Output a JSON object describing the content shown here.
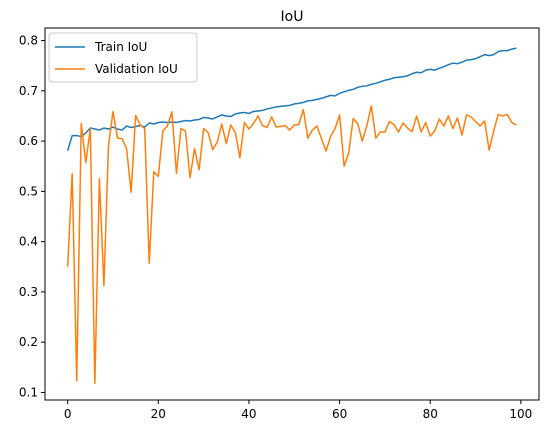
{
  "chart_data": {
    "type": "line",
    "title": "IoU",
    "xlabel": "",
    "ylabel": "",
    "xlim": [
      -5,
      104
    ],
    "ylim": [
      0.085,
      0.825
    ],
    "xticks": [
      0,
      20,
      40,
      60,
      80,
      100
    ],
    "yticks": [
      0.1,
      0.2,
      0.3,
      0.4,
      0.5,
      0.6,
      0.7,
      0.8
    ],
    "legend": "upper left",
    "grid": false,
    "series": [
      {
        "name": "Train IoU",
        "color": "#1f77b4",
        "x": [
          0,
          1,
          2,
          3,
          4,
          5,
          6,
          7,
          8,
          9,
          10,
          11,
          12,
          13,
          14,
          15,
          16,
          17,
          18,
          19,
          20,
          21,
          22,
          23,
          24,
          25,
          26,
          27,
          28,
          29,
          30,
          31,
          32,
          33,
          34,
          35,
          36,
          37,
          38,
          39,
          40,
          41,
          42,
          43,
          44,
          45,
          46,
          47,
          48,
          49,
          50,
          51,
          52,
          53,
          54,
          55,
          56,
          57,
          58,
          59,
          60,
          61,
          62,
          63,
          64,
          65,
          66,
          67,
          68,
          69,
          70,
          71,
          72,
          73,
          74,
          75,
          76,
          77,
          78,
          79,
          80,
          81,
          82,
          83,
          84,
          85,
          86,
          87,
          88,
          89,
          90,
          91,
          92,
          93,
          94,
          95,
          96,
          97,
          98,
          99
        ],
        "values": [
          0.581,
          0.611,
          0.611,
          0.609,
          0.616,
          0.626,
          0.624,
          0.622,
          0.626,
          0.624,
          0.628,
          0.624,
          0.622,
          0.63,
          0.627,
          0.629,
          0.631,
          0.628,
          0.636,
          0.634,
          0.637,
          0.638,
          0.637,
          0.638,
          0.637,
          0.639,
          0.641,
          0.64,
          0.642,
          0.643,
          0.647,
          0.646,
          0.644,
          0.648,
          0.652,
          0.65,
          0.649,
          0.654,
          0.656,
          0.657,
          0.655,
          0.659,
          0.66,
          0.661,
          0.664,
          0.666,
          0.668,
          0.669,
          0.67,
          0.671,
          0.674,
          0.675,
          0.677,
          0.68,
          0.681,
          0.683,
          0.685,
          0.688,
          0.691,
          0.69,
          0.695,
          0.698,
          0.701,
          0.703,
          0.707,
          0.709,
          0.71,
          0.713,
          0.715,
          0.718,
          0.721,
          0.723,
          0.726,
          0.727,
          0.728,
          0.73,
          0.734,
          0.737,
          0.736,
          0.741,
          0.743,
          0.741,
          0.745,
          0.748,
          0.752,
          0.755,
          0.754,
          0.757,
          0.761,
          0.762,
          0.764,
          0.768,
          0.772,
          0.77,
          0.772,
          0.778,
          0.78,
          0.78,
          0.783,
          0.785
        ]
      },
      {
        "name": "Validation IoU",
        "color": "#ff7f0e",
        "x": [
          0,
          1,
          2,
          3,
          4,
          5,
          6,
          7,
          8,
          9,
          10,
          11,
          12,
          13,
          14,
          15,
          16,
          17,
          18,
          19,
          20,
          21,
          22,
          23,
          24,
          25,
          26,
          27,
          28,
          29,
          30,
          31,
          32,
          33,
          34,
          35,
          36,
          37,
          38,
          39,
          40,
          41,
          42,
          43,
          44,
          45,
          46,
          47,
          48,
          49,
          50,
          51,
          52,
          53,
          54,
          55,
          56,
          57,
          58,
          59,
          60,
          61,
          62,
          63,
          64,
          65,
          66,
          67,
          68,
          69,
          70,
          71,
          72,
          73,
          74,
          75,
          76,
          77,
          78,
          79,
          80,
          81,
          82,
          83,
          84,
          85,
          86,
          87,
          88,
          89,
          90,
          91,
          92,
          93,
          94,
          95,
          96,
          97,
          98,
          99
        ],
        "values": [
          0.35,
          0.535,
          0.123,
          0.635,
          0.557,
          0.625,
          0.118,
          0.525,
          0.312,
          0.59,
          0.659,
          0.606,
          0.605,
          0.585,
          0.498,
          0.651,
          0.632,
          0.625,
          0.357,
          0.539,
          0.53,
          0.62,
          0.63,
          0.658,
          0.536,
          0.625,
          0.62,
          0.527,
          0.585,
          0.543,
          0.625,
          0.617,
          0.583,
          0.598,
          0.634,
          0.595,
          0.632,
          0.617,
          0.567,
          0.637,
          0.624,
          0.635,
          0.65,
          0.631,
          0.627,
          0.648,
          0.628,
          0.629,
          0.631,
          0.622,
          0.632,
          0.633,
          0.663,
          0.606,
          0.622,
          0.63,
          0.605,
          0.58,
          0.609,
          0.625,
          0.652,
          0.55,
          0.576,
          0.645,
          0.635,
          0.6,
          0.63,
          0.67,
          0.606,
          0.618,
          0.618,
          0.639,
          0.633,
          0.618,
          0.636,
          0.626,
          0.619,
          0.65,
          0.618,
          0.637,
          0.61,
          0.62,
          0.644,
          0.63,
          0.65,
          0.625,
          0.646,
          0.612,
          0.652,
          0.648,
          0.639,
          0.63,
          0.64,
          0.582,
          0.62,
          0.653,
          0.65,
          0.653,
          0.637,
          0.632
        ]
      }
    ]
  }
}
